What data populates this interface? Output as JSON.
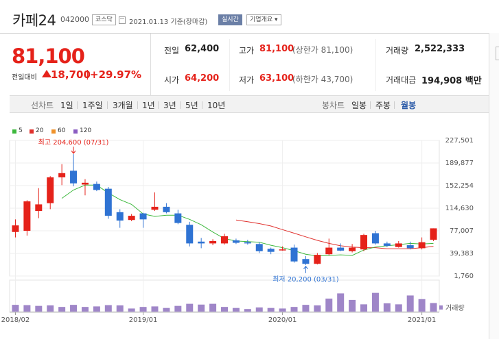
{
  "header": {
    "stock_name": "카페24",
    "stock_code": "042000",
    "market_badge": "코스닥",
    "date_text": "2021.01.13 기준(장마감)",
    "realtime_badge": "실시간",
    "company_info_dropdown": "기업개요 ▾"
  },
  "quote": {
    "current_price": "81,100",
    "change_label": "전일대비",
    "change_value": "18,700",
    "change_sep": "|",
    "change_percent": "+29.97%",
    "prev_close_label": "전일",
    "prev_close": "62,400",
    "high_label": "고가",
    "high": "81,100",
    "high_sub": "(상한가 81,100)",
    "volume_label": "거래량",
    "volume": "2,522,333",
    "open_label": "시가",
    "open": "64,200",
    "low_label": "저가",
    "low": "63,100",
    "low_sub": "(하한가 43,700)",
    "amount_label": "거래대금",
    "amount": "194,908 백만"
  },
  "period_bar": {
    "line_chart_label": "선차트",
    "line_periods": [
      "1일",
      "1주일",
      "3개월",
      "1년",
      "3년",
      "5년",
      "10년"
    ],
    "candle_chart_label": "봉차트",
    "candle_periods": [
      "일봉",
      "주봉",
      "월봉"
    ],
    "active_candle_period": "월봉"
  },
  "colors": {
    "up": "#e5221a",
    "down": "#2f73d3",
    "ma5": "#3cb83c",
    "ma20": "#e0302c",
    "ma60": "#f0922b",
    "ma120": "#8a5cc2",
    "volume": "#9f86c8",
    "accent": "#2c5ba8"
  },
  "chart_data": {
    "type": "candlestick",
    "legend": [
      {
        "name": "5",
        "color": "#3cb83c"
      },
      {
        "name": "20",
        "color": "#e0302c"
      },
      {
        "name": "60",
        "color": "#f0922b"
      },
      {
        "name": "120",
        "color": "#8a5cc2"
      }
    ],
    "y_ticks": [
      "227,501",
      "189,877",
      "152,254",
      "114,630",
      "77,007",
      "39,383",
      "1,760"
    ],
    "y_range": [
      1760,
      227501
    ],
    "x_labels": [
      {
        "label": "2018/02",
        "index": 0
      },
      {
        "label": "2019/01",
        "index": 11
      },
      {
        "label": "2020/01",
        "index": 23
      },
      {
        "label": "2021/01",
        "index": 35
      }
    ],
    "volume_label": "거래량",
    "high_annotation": "최고 204,600 (07/31)",
    "high_annotation_index": 5,
    "high_annotation_value": 204600,
    "low_annotation": "최저 20,200 (03/31)",
    "low_annotation_index": 25,
    "low_annotation_value": 20200,
    "candles": [
      {
        "o": 75000,
        "c": 86000,
        "h": 96000,
        "l": 66000,
        "v": 0.26
      },
      {
        "o": 77000,
        "c": 126000,
        "h": 128000,
        "l": 69000,
        "v": 0.25
      },
      {
        "o": 110000,
        "c": 121000,
        "h": 148000,
        "l": 98000,
        "v": 0.22
      },
      {
        "o": 123000,
        "c": 166000,
        "h": 168000,
        "l": 113000,
        "v": 0.24
      },
      {
        "o": 166000,
        "c": 173000,
        "h": 188000,
        "l": 153000,
        "v": 0.18
      },
      {
        "o": 177000,
        "c": 156000,
        "h": 204600,
        "l": 151000,
        "v": 0.26
      },
      {
        "o": 154000,
        "c": 157000,
        "h": 163000,
        "l": 136000,
        "v": 0.18
      },
      {
        "o": 155000,
        "c": 145000,
        "h": 159000,
        "l": 143000,
        "v": 0.2
      },
      {
        "o": 147000,
        "c": 102000,
        "h": 150000,
        "l": 97000,
        "v": 0.25
      },
      {
        "o": 108000,
        "c": 94000,
        "h": 113000,
        "l": 82000,
        "v": 0.24
      },
      {
        "o": 95000,
        "c": 102000,
        "h": 105000,
        "l": 93000,
        "v": 0.12
      },
      {
        "o": 106000,
        "c": 96000,
        "h": 107000,
        "l": 82000,
        "v": 0.18
      },
      {
        "o": 112000,
        "c": 117000,
        "h": 141000,
        "l": 110000,
        "v": 0.2
      },
      {
        "o": 117000,
        "c": 108000,
        "h": 123000,
        "l": 106000,
        "v": 0.14
      },
      {
        "o": 106000,
        "c": 90000,
        "h": 112000,
        "l": 88000,
        "v": 0.22
      },
      {
        "o": 87000,
        "c": 56000,
        "h": 92000,
        "l": 51000,
        "v": 0.3
      },
      {
        "o": 59000,
        "c": 56000,
        "h": 65000,
        "l": 48000,
        "v": 0.27
      },
      {
        "o": 56000,
        "c": 60000,
        "h": 63000,
        "l": 53000,
        "v": 0.3
      },
      {
        "o": 56000,
        "c": 68000,
        "h": 72000,
        "l": 54000,
        "v": 0.18
      },
      {
        "o": 61000,
        "c": 57000,
        "h": 64000,
        "l": 55000,
        "v": 0.14
      },
      {
        "o": 58000,
        "c": 56000,
        "h": 62000,
        "l": 54000,
        "v": 0.1
      },
      {
        "o": 55000,
        "c": 43000,
        "h": 58000,
        "l": 40000,
        "v": 0.16
      },
      {
        "o": 47000,
        "c": 42000,
        "h": 49000,
        "l": 38000,
        "v": 0.14
      },
      {
        "o": 45000,
        "c": 46000,
        "h": 51000,
        "l": 44000,
        "v": 0.12
      },
      {
        "o": 49000,
        "c": 26000,
        "h": 54000,
        "l": 24000,
        "v": 0.18
      },
      {
        "o": 30000,
        "c": 22000,
        "h": 35000,
        "l": 20200,
        "v": 0.26
      },
      {
        "o": 22000,
        "c": 37000,
        "h": 40000,
        "l": 21000,
        "v": 0.24
      },
      {
        "o": 38000,
        "c": 49000,
        "h": 64000,
        "l": 36000,
        "v": 0.5
      },
      {
        "o": 49000,
        "c": 44000,
        "h": 56000,
        "l": 43000,
        "v": 0.7
      },
      {
        "o": 43000,
        "c": 49000,
        "h": 55000,
        "l": 41000,
        "v": 0.45
      },
      {
        "o": 46000,
        "c": 70000,
        "h": 72000,
        "l": 43000,
        "v": 0.28
      },
      {
        "o": 73000,
        "c": 56000,
        "h": 77000,
        "l": 54000,
        "v": 0.72
      },
      {
        "o": 56000,
        "c": 52000,
        "h": 59000,
        "l": 50000,
        "v": 0.32
      },
      {
        "o": 50000,
        "c": 56000,
        "h": 60000,
        "l": 49000,
        "v": 0.28
      },
      {
        "o": 53000,
        "c": 48000,
        "h": 59000,
        "l": 46000,
        "v": 0.62
      },
      {
        "o": 48000,
        "c": 58000,
        "h": 66000,
        "l": 46000,
        "v": 0.48
      },
      {
        "o": 62000,
        "c": 81100,
        "h": 81100,
        "l": 60000,
        "v": 0.33
      }
    ],
    "ma5": [
      null,
      null,
      null,
      null,
      131000,
      145000,
      153000,
      153000,
      140000,
      129000,
      121000,
      105000,
      101000,
      103000,
      103000,
      96000,
      87000,
      75000,
      64000,
      60000,
      59000,
      58000,
      53000,
      49000,
      44000,
      38000,
      35000,
      36000,
      37000,
      36000,
      45000,
      50000,
      52000,
      54000,
      56000,
      55000,
      56000
    ],
    "ma20": [
      null,
      null,
      null,
      null,
      null,
      null,
      null,
      null,
      null,
      null,
      null,
      null,
      null,
      null,
      null,
      null,
      null,
      null,
      null,
      95000,
      92000,
      89000,
      85000,
      79000,
      73000,
      67000,
      61000,
      56000,
      52000,
      50000,
      49000,
      49000,
      47000,
      47000,
      47000,
      49000,
      51000
    ],
    "ma60": [],
    "ma120": []
  }
}
